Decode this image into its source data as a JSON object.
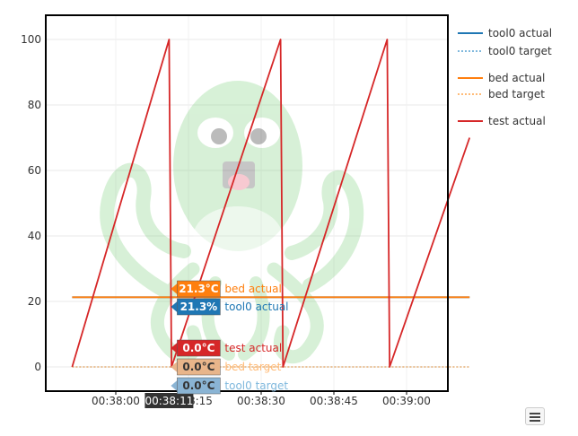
{
  "chart_data": {
    "type": "line",
    "x_axis": {
      "ticks": [
        "00:38:00",
        "00:38:15",
        "00:38:30",
        "00:38:45",
        "00:39:00"
      ],
      "hover_label": "00:38:11"
    },
    "y_axis": {
      "ticks": [
        0,
        20,
        40,
        60,
        80,
        100
      ],
      "ylim": [
        -7,
        110
      ]
    },
    "grid": "on",
    "legend_position": "right",
    "series": [
      {
        "name": "tool0 actual",
        "color": "#1f77b4",
        "style": "solid",
        "tip": "21.3%",
        "points": [
          [
            -9,
            21.3
          ],
          [
            73,
            21.3
          ]
        ]
      },
      {
        "name": "tool0 target",
        "color": "#7fb8dd",
        "style": "dotted",
        "tip": "0.0°C",
        "points": [
          [
            -9,
            0
          ],
          [
            73,
            0
          ]
        ]
      },
      {
        "name": "bed actual",
        "color": "#ff7f0e",
        "style": "solid",
        "tip": "21.3°C",
        "points": [
          [
            -9,
            21.3
          ],
          [
            73,
            21.3
          ]
        ]
      },
      {
        "name": "bed target",
        "color": "#ffbb78",
        "style": "dotted",
        "tip": "0.0°C",
        "points": [
          [
            -9,
            0
          ],
          [
            73,
            0
          ]
        ]
      },
      {
        "name": "test actual",
        "color": "#d62728",
        "style": "solid",
        "tip": "0.0°C",
        "points": [
          [
            -9,
            0
          ],
          [
            11,
            100
          ],
          [
            11.5,
            0
          ],
          [
            34,
            100
          ],
          [
            34.5,
            0
          ],
          [
            56,
            100
          ],
          [
            56.5,
            0
          ],
          [
            73,
            70
          ]
        ]
      }
    ]
  }
}
